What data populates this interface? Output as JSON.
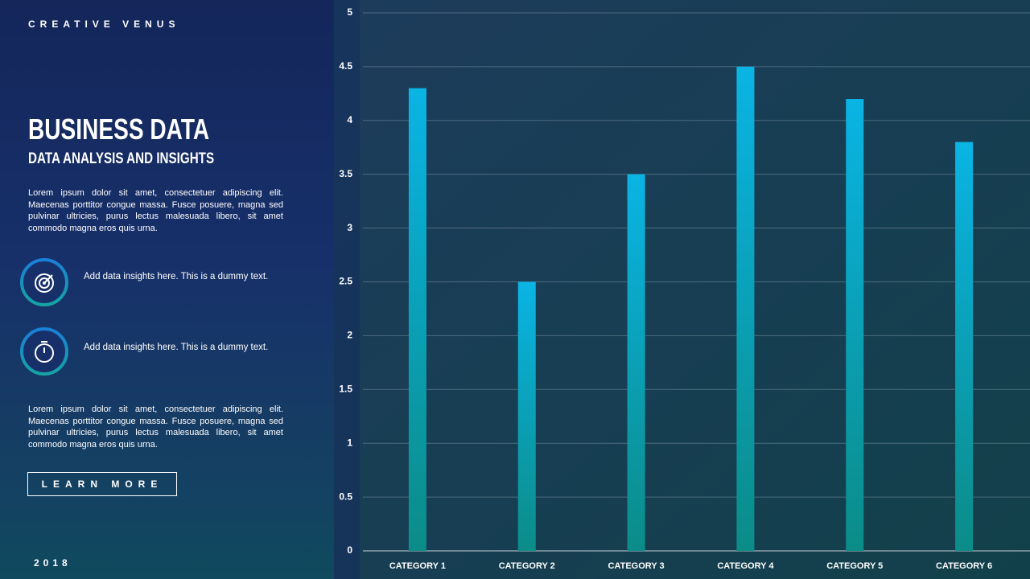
{
  "slide": {
    "brand": "CREATIVE VENUS",
    "title": "BUSINESS DATA",
    "subtitle": "DATA ANALYSIS AND INSIGHTS",
    "paragraphs": [
      "Lorem ipsum dolor sit amet, consectetuer adipiscing elit. Maecenas porttitor congue massa. Fusce posuere, magna sed pulvinar ultricies, purus lectus malesuada libero, sit amet commodo magna eros quis urna.",
      "Lorem ipsum dolor sit amet, consectetuer adipiscing elit. Maecenas porttitor congue massa. Fusce posuere, magna sed pulvinar ultricies, purus lectus malesuada libero, sit amet commodo magna eros quis urna."
    ],
    "insights": [
      "Add data insights here. This is a dummy text.",
      "Add data insights here. This is a dummy text."
    ],
    "button": "LEARN MORE",
    "year": "2018"
  },
  "chart_data": {
    "type": "bar",
    "categories": [
      "CATEGORY 1",
      "CATEGORY 2",
      "CATEGORY 3",
      "CATEGORY 4",
      "CATEGORY 5",
      "CATEGORY 6"
    ],
    "values": [
      4.3,
      2.5,
      3.5,
      4.5,
      4.2,
      3.8
    ],
    "color": "#0ab4e4",
    "ylim": [
      0,
      5
    ],
    "yticks": [
      0,
      0.5,
      1,
      1.5,
      2,
      2.5,
      3,
      3.5,
      4,
      4.5,
      5
    ],
    "grid": true
  }
}
